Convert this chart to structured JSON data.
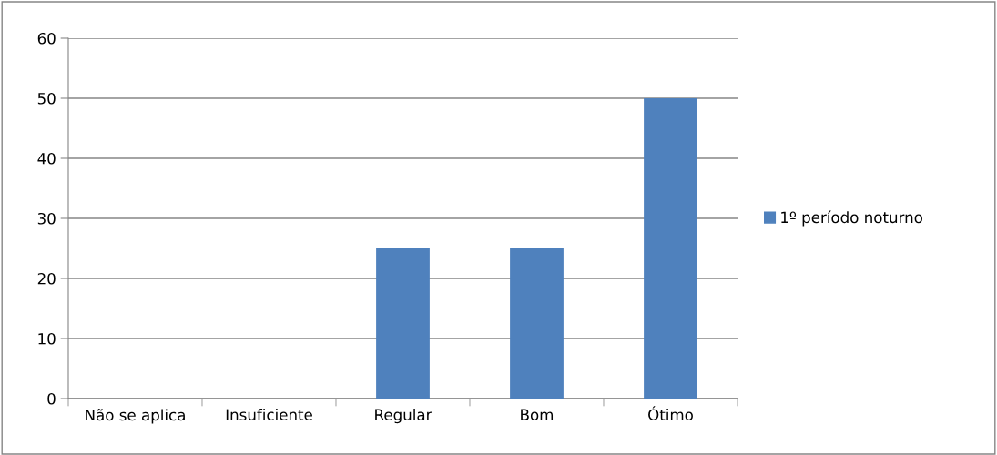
{
  "chart_data": {
    "type": "bar",
    "categories": [
      "Não se aplica",
      "Insuficiente",
      "Regular",
      "Bom",
      "Ótimo"
    ],
    "series": [
      {
        "name": "1º período noturno",
        "color": "#4f81bd",
        "values": [
          0,
          0,
          25,
          25,
          50
        ]
      }
    ],
    "ylim": [
      0,
      60
    ],
    "yticks": [
      0,
      10,
      20,
      30,
      40,
      50,
      60
    ],
    "grid": "y",
    "legend": "right"
  }
}
